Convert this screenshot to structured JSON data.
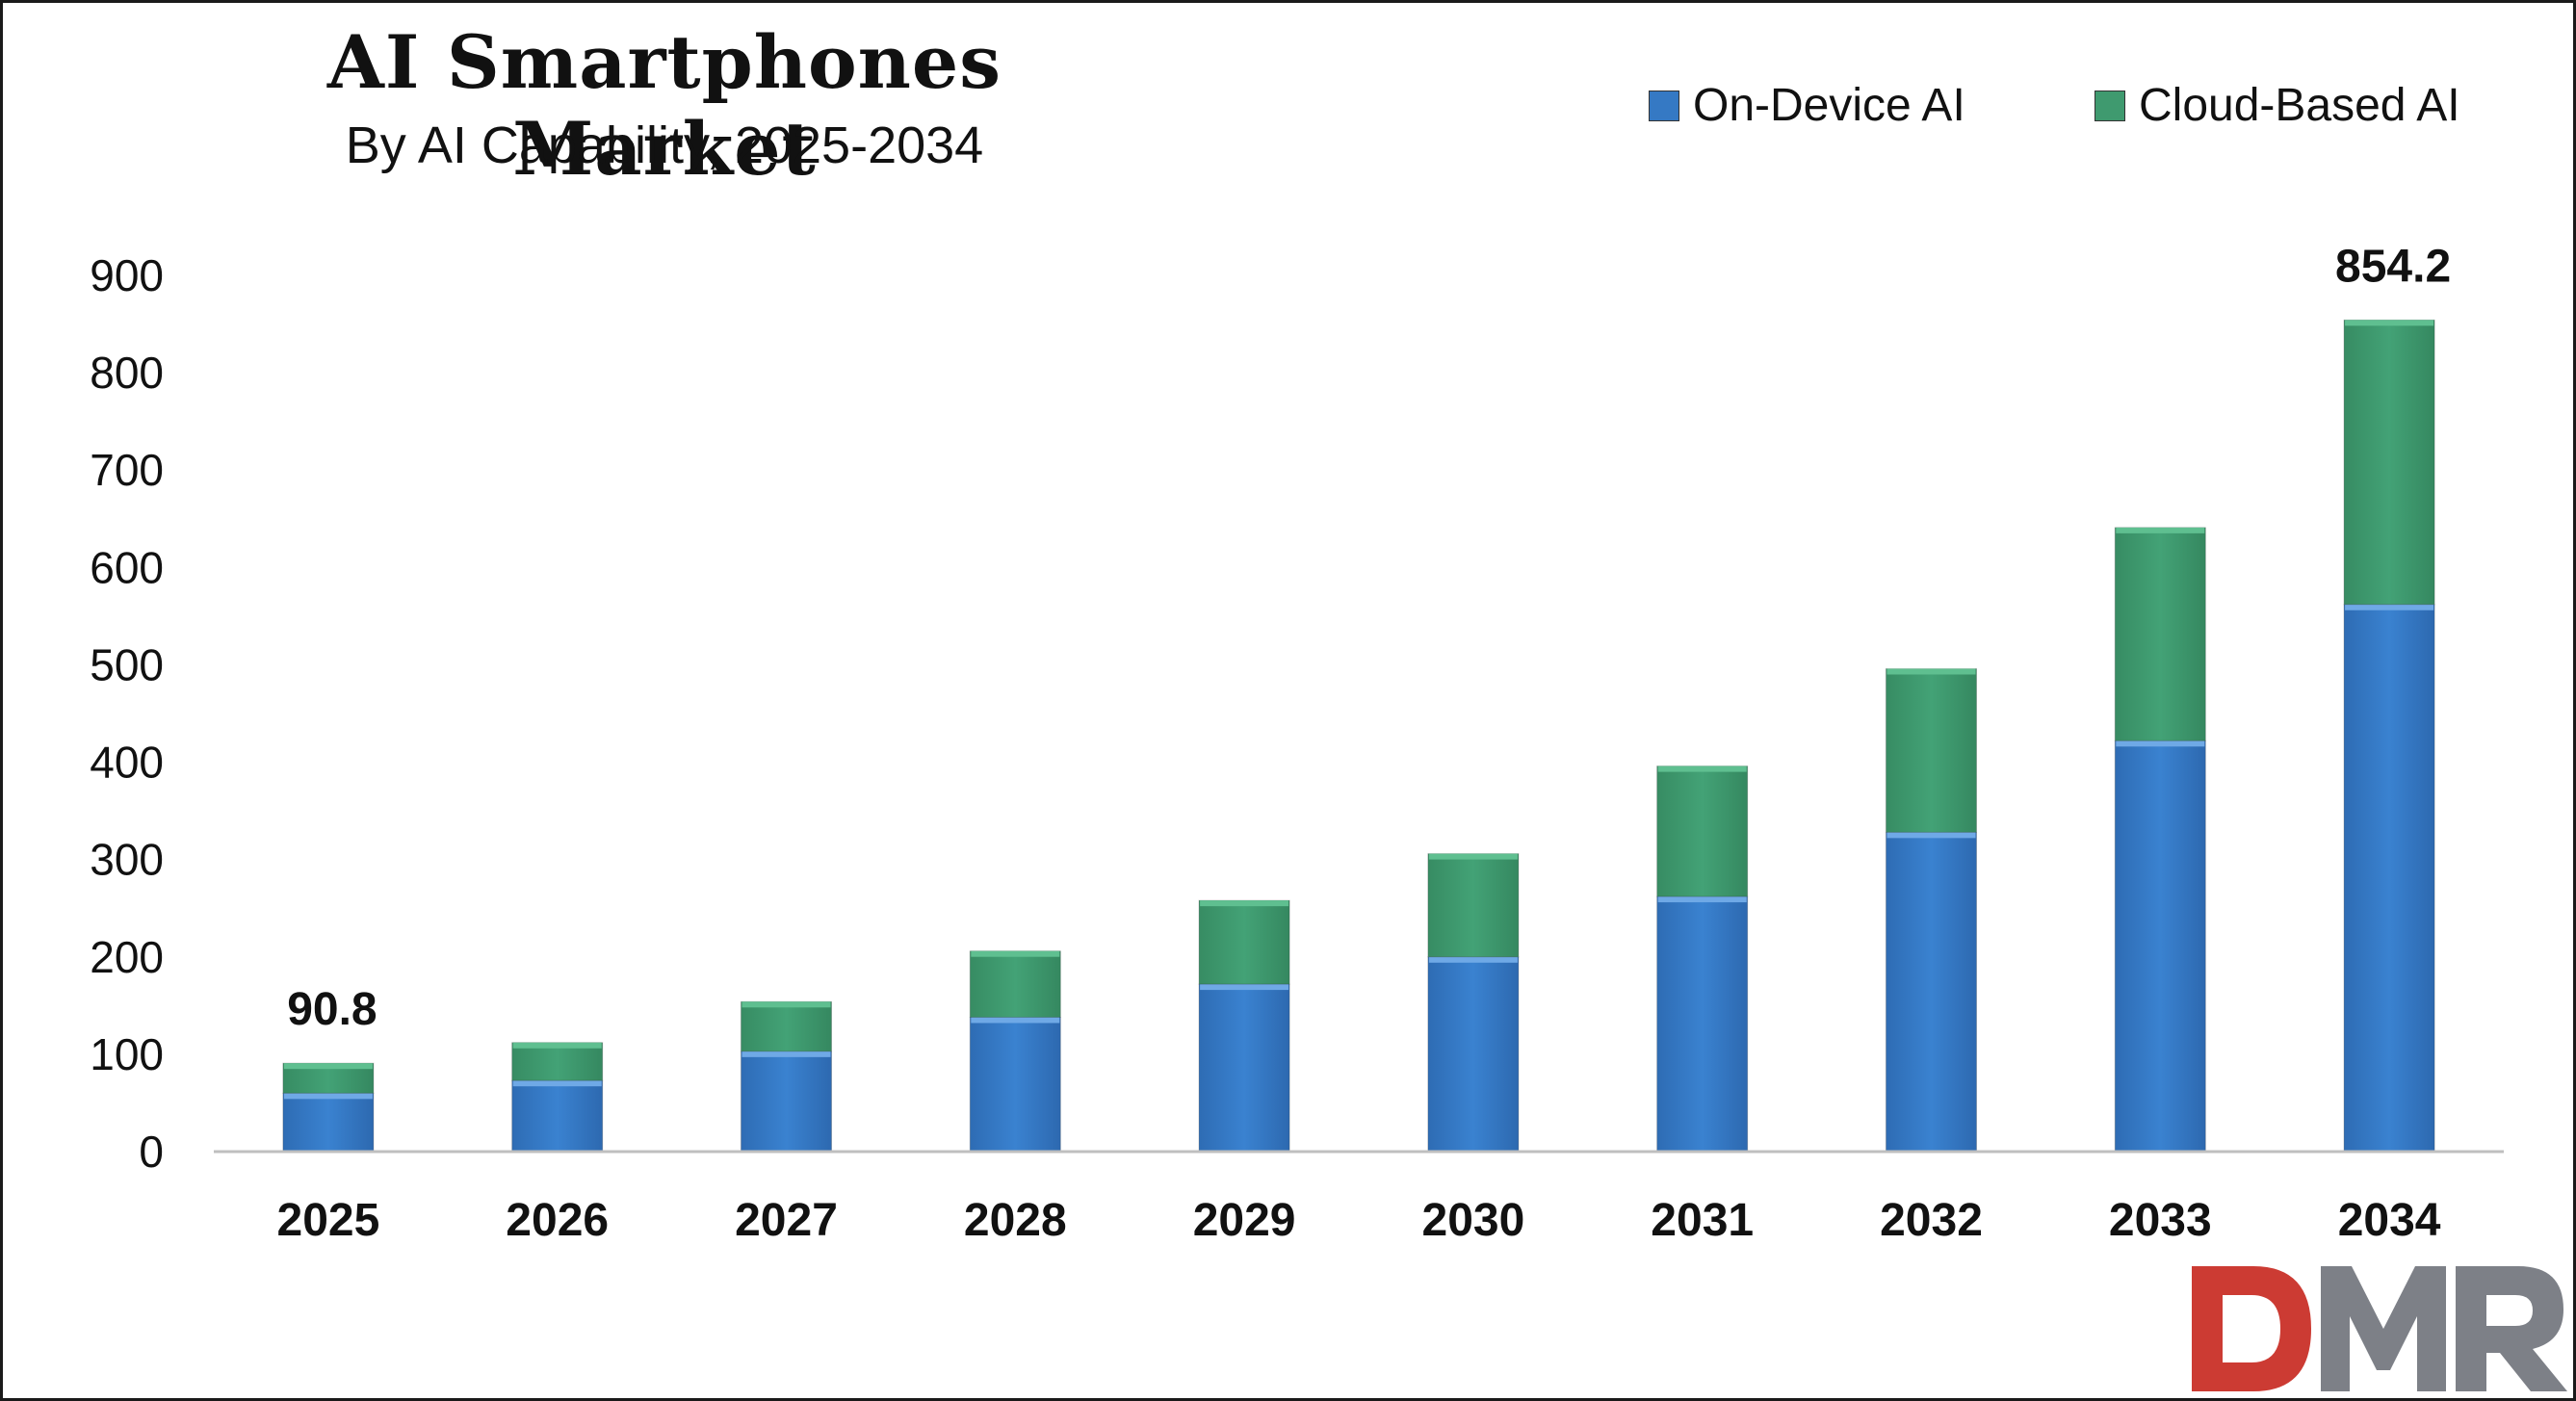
{
  "chart_data": {
    "type": "bar",
    "stacked": true,
    "title": "AI Smartphones Market",
    "subtitle": "By AI Capability, 2025-2034",
    "categories": [
      "2025",
      "2026",
      "2027",
      "2028",
      "2029",
      "2030",
      "2031",
      "2032",
      "2033",
      "2034"
    ],
    "series": [
      {
        "name": "On-Device AI",
        "color": "#3579c4",
        "values": [
          60,
          73,
          103,
          138,
          172,
          200,
          262,
          328,
          422,
          562
        ]
      },
      {
        "name": "Cloud-Based AI",
        "color": "#3f9a6f",
        "values": [
          30.8,
          39,
          51,
          68,
          86,
          106,
          134,
          168,
          219,
          292.2
        ]
      }
    ],
    "ylim": [
      0,
      900
    ],
    "yticks": [
      0,
      100,
      200,
      300,
      400,
      500,
      600,
      700,
      800,
      900
    ],
    "grid": false,
    "legend_position": "top-right",
    "data_labels": [
      {
        "category": "2025",
        "text": "90.8"
      },
      {
        "category": "2034",
        "text": "854.2"
      }
    ]
  },
  "watermark": {
    "text": "DMR",
    "colors": [
      "#cc3b33",
      "#7d8087"
    ]
  }
}
